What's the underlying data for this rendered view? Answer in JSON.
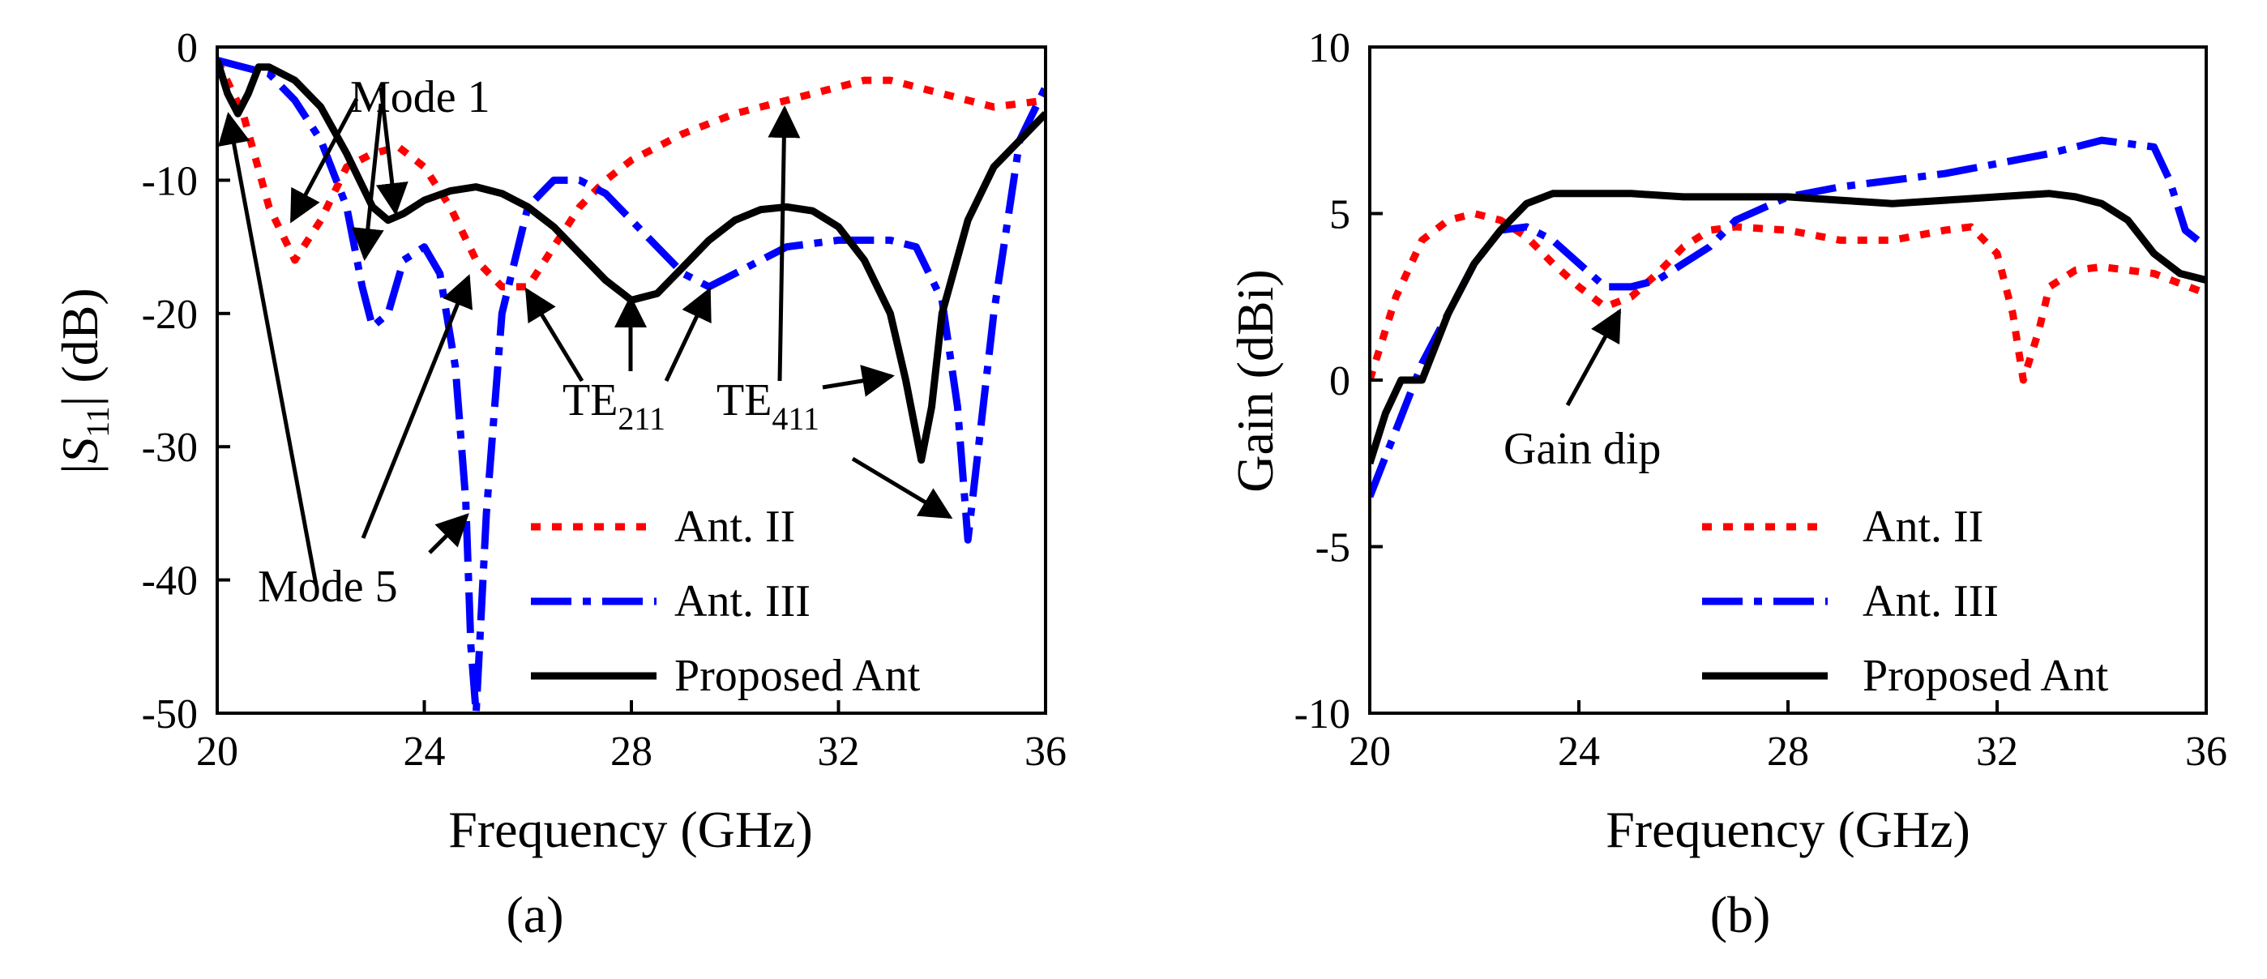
{
  "colors": {
    "ant_ii": "#ff0000",
    "ant_iii": "#0000ff",
    "proposed": "#000000"
  },
  "chart_data": [
    {
      "type": "line",
      "panel_label": "(a)",
      "xlabel": "Frequency (GHz)",
      "ylabel_prefix": "|",
      "ylabel_symbol": "S",
      "ylabel_sub": "11",
      "ylabel_suffix": "| (dB)",
      "xlim": [
        20,
        36
      ],
      "ylim": [
        -50,
        0
      ],
      "xticks": [
        20,
        24,
        28,
        32,
        36
      ],
      "yticks": [
        0,
        -10,
        -20,
        -30,
        -40,
        -50
      ],
      "xtick_labels": [
        "20",
        "24",
        "28",
        "32",
        "36"
      ],
      "ytick_labels": [
        "0",
        "-10",
        "-20",
        "-30",
        "-40",
        "-50"
      ],
      "legend_placement": "bottom-right",
      "annotations": [
        {
          "text": "Mode 1"
        },
        {
          "text": "Mode 5"
        },
        {
          "text": "TE",
          "sub": "211"
        },
        {
          "text": "TE",
          "sub": "411"
        }
      ],
      "series": [
        {
          "name": "Ant. II",
          "style": "dotted",
          "color": "#ff0000",
          "x": [
            20,
            20.5,
            21,
            21.5,
            22,
            22.5,
            23,
            23.5,
            24,
            24.5,
            25,
            25.5,
            26,
            26.5,
            27,
            27.5,
            28,
            29,
            30,
            31,
            32,
            32.5,
            33,
            34,
            35,
            36
          ],
          "y": [
            -1,
            -5,
            -12,
            -16,
            -13,
            -9,
            -8,
            -7.5,
            -9,
            -12,
            -16,
            -18,
            -18,
            -15,
            -12,
            -10,
            -8.5,
            -6.5,
            -5,
            -4,
            -3,
            -2.5,
            -2.5,
            -3.5,
            -4.5,
            -4
          ]
        },
        {
          "name": "Ant. III",
          "style": "dashdot",
          "color": "#0000ff",
          "x": [
            20,
            20.5,
            21,
            21.5,
            22,
            22.5,
            22.8,
            23,
            23.3,
            23.6,
            24,
            24.3,
            24.6,
            24.8,
            24.9,
            25,
            25.2,
            25.5,
            26,
            26.5,
            27,
            27.5,
            28,
            28.5,
            29,
            29.5,
            30,
            31,
            32,
            33,
            33.5,
            34,
            34.3,
            34.5,
            35,
            35.5,
            36
          ],
          "y": [
            -1,
            -1.5,
            -2,
            -4,
            -7,
            -12,
            -18,
            -21,
            -20,
            -16,
            -15,
            -17,
            -24,
            -34,
            -45,
            -50,
            -35,
            -20,
            -12,
            -10,
            -10,
            -11,
            -13,
            -15,
            -17,
            -18,
            -17,
            -15,
            -14.5,
            -14.5,
            -15,
            -19,
            -27,
            -37,
            -20,
            -7,
            -3
          ]
        },
        {
          "name": "Proposed Ant",
          "style": "solid",
          "color": "#000000",
          "x": [
            20,
            20.2,
            20.4,
            20.6,
            20.8,
            21,
            21.5,
            22,
            22.5,
            23,
            23.3,
            23.6,
            24,
            24.5,
            25,
            25.5,
            26,
            26.5,
            27,
            27.5,
            28,
            28.5,
            29,
            29.5,
            30,
            30.5,
            31,
            31.5,
            32,
            32.5,
            33,
            33.3,
            33.6,
            33.8,
            34,
            34.5,
            35,
            35.5,
            36
          ],
          "y": [
            -1,
            -3.5,
            -5,
            -3.5,
            -1.5,
            -1.5,
            -2.5,
            -4.5,
            -8,
            -12,
            -13,
            -12.5,
            -11.5,
            -10.8,
            -10.5,
            -11,
            -12,
            -13.5,
            -15.5,
            -17.5,
            -19,
            -18.5,
            -16.5,
            -14.5,
            -13,
            -12.2,
            -12,
            -12.3,
            -13.5,
            -16,
            -20,
            -25,
            -31,
            -27,
            -20,
            -13,
            -9,
            -7,
            -5
          ]
        }
      ]
    },
    {
      "type": "line",
      "panel_label": "(b)",
      "xlabel": "Frequency (GHz)",
      "ylabel": "Gain (dBi)",
      "xlim": [
        20,
        36
      ],
      "ylim": [
        -10,
        10
      ],
      "xticks": [
        20,
        24,
        28,
        32,
        36
      ],
      "yticks": [
        10,
        5,
        0,
        -5,
        -10
      ],
      "xtick_labels": [
        "20",
        "24",
        "28",
        "32",
        "36"
      ],
      "ytick_labels": [
        "10",
        "5",
        "0",
        "-5",
        "-10"
      ],
      "legend_placement": "bottom-right",
      "annotations": [
        {
          "text": "Gain dip"
        }
      ],
      "series": [
        {
          "name": "Ant. II",
          "style": "dotted",
          "color": "#ff0000",
          "x": [
            20,
            20.5,
            21,
            21.5,
            22,
            22.5,
            23,
            23.5,
            24,
            24.5,
            25,
            25.5,
            26,
            26.5,
            27,
            28,
            29,
            30,
            31,
            31.5,
            32,
            32.3,
            32.5,
            32.8,
            33,
            33.5,
            34,
            35,
            36
          ],
          "y": [
            0,
            2.5,
            4.2,
            4.8,
            5,
            4.8,
            4.3,
            3.5,
            2.8,
            2.2,
            2.5,
            3.2,
            4,
            4.5,
            4.6,
            4.5,
            4.2,
            4.2,
            4.5,
            4.6,
            3.8,
            2,
            0,
            1.5,
            2.8,
            3.3,
            3.4,
            3.2,
            2.6
          ]
        },
        {
          "name": "Ant. III",
          "style": "dashdot",
          "color": "#0000ff",
          "x": [
            20,
            20.5,
            21,
            21.5,
            22,
            22.5,
            23,
            23.5,
            24,
            24.5,
            25,
            25.5,
            26,
            26.5,
            27,
            28,
            29,
            30,
            31,
            32,
            33,
            34,
            35,
            35.3,
            35.6,
            36
          ],
          "y": [
            -3.5,
            -1.5,
            0.5,
            2,
            3.5,
            4.5,
            4.6,
            4.2,
            3.5,
            2.8,
            2.8,
            3,
            3.5,
            4,
            4.8,
            5.5,
            5.8,
            6,
            6.2,
            6.5,
            6.8,
            7.2,
            7,
            6,
            4.5,
            4
          ]
        },
        {
          "name": "Proposed Ant",
          "style": "solid",
          "color": "#000000",
          "x": [
            20,
            20.3,
            20.6,
            21,
            21.5,
            22,
            22.5,
            23,
            23.5,
            24,
            25,
            26,
            27,
            28,
            29,
            30,
            31,
            32,
            33,
            33.5,
            34,
            34.5,
            35,
            35.5,
            36
          ],
          "y": [
            -2.5,
            -1,
            0,
            0,
            2,
            3.5,
            4.5,
            5.3,
            5.6,
            5.6,
            5.6,
            5.5,
            5.5,
            5.5,
            5.4,
            5.3,
            5.4,
            5.5,
            5.6,
            5.5,
            5.3,
            4.8,
            3.8,
            3.2,
            3
          ]
        }
      ]
    }
  ]
}
